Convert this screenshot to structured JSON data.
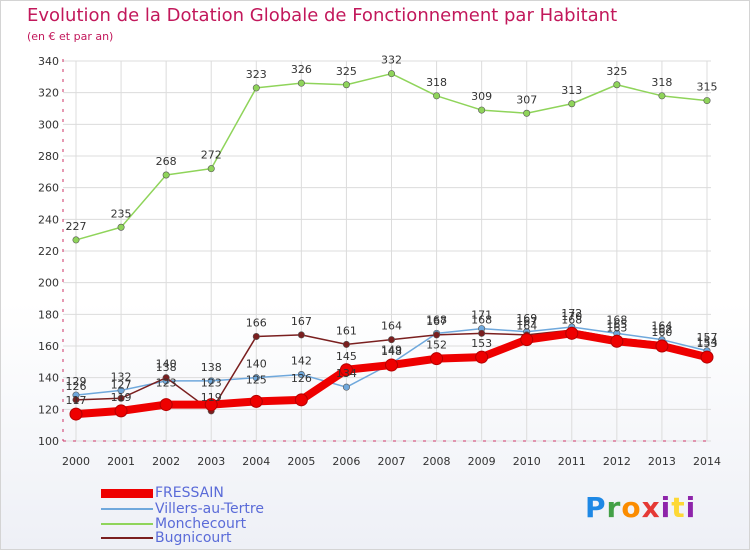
{
  "header": {
    "title": "Evolution de la Dotation Globale de Fonctionnement par Habitant",
    "subtitle": "(en € et par an)"
  },
  "logo": {
    "text": "Proxiti"
  },
  "chart_data": {
    "type": "line",
    "x": [
      "2000",
      "2001",
      "2002",
      "2003",
      "2004",
      "2005",
      "2006",
      "2007",
      "2008",
      "2009",
      "2010",
      "2011",
      "2012",
      "2013",
      "2014"
    ],
    "ylim": [
      100,
      340
    ],
    "yticks": [
      100,
      120,
      140,
      160,
      180,
      200,
      220,
      240,
      260,
      280,
      300,
      320,
      340
    ],
    "grid": true,
    "legend_position": "bottom-left",
    "series": [
      {
        "name": "FRESSAIN",
        "color": "#ee0000",
        "values": [
          117,
          119,
          123,
          123,
          125,
          126,
          145,
          148,
          152,
          153,
          164,
          168,
          163,
          160,
          153
        ]
      },
      {
        "name": "Villers-au-Tertre",
        "color": "#6fa8dc",
        "values": [
          129,
          132,
          138,
          138,
          140,
          142,
          134,
          149,
          168,
          171,
          169,
          172,
          168,
          164,
          157
        ]
      },
      {
        "name": "Monchecourt",
        "color": "#8fd45a",
        "values": [
          227,
          235,
          268,
          272,
          323,
          326,
          325,
          332,
          318,
          309,
          307,
          313,
          325,
          318,
          315
        ]
      },
      {
        "name": "Bugnicourt",
        "color": "#7a1f1f",
        "values": [
          126,
          127,
          140,
          119,
          166,
          167,
          161,
          164,
          167,
          168,
          167,
          170,
          165,
          162,
          154
        ]
      }
    ]
  }
}
